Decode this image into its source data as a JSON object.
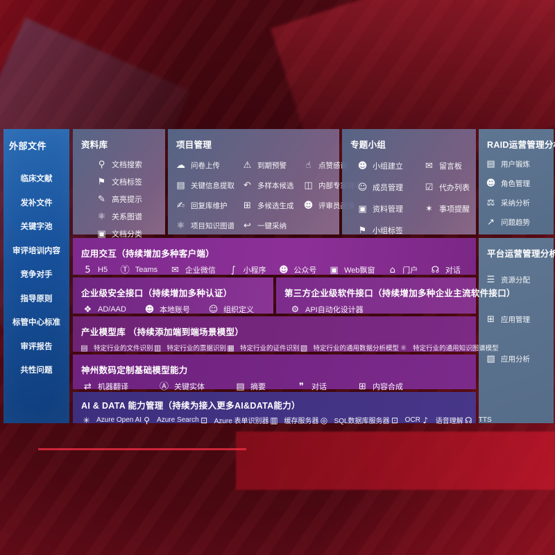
{
  "colors": {
    "sidebar_blue": "#1b5aa0",
    "panel_slate": "#66788f",
    "row_purple": "#7b2a8a",
    "row_indigo": "#3e2f80",
    "background_red": "#7c101f"
  },
  "sidebar": {
    "title": "外部文件",
    "items": [
      {
        "label": "临床文献"
      },
      {
        "label": "发补文件"
      },
      {
        "label": "关键字池"
      },
      {
        "label": "审评培训内容"
      },
      {
        "label": "竞争对手"
      },
      {
        "label": "指导原则"
      },
      {
        "label": "标管中心标准"
      },
      {
        "label": "审评报告"
      },
      {
        "label": "共性问题"
      }
    ]
  },
  "panels": {
    "ziliaoku": {
      "title": "资料库",
      "items": [
        {
          "label": "文档搜索",
          "icon": "⚲",
          "icon_name": "document-search-icon"
        },
        {
          "label": "文档标签",
          "icon": "⚑",
          "icon_name": "document-tag-icon"
        },
        {
          "label": "高亮提示",
          "icon": "✎",
          "icon_name": "highlight-pen-icon"
        },
        {
          "label": "关系图谱",
          "icon": "⚛",
          "icon_name": "relation-graph-icon"
        },
        {
          "label": "文档分类",
          "icon": "▣",
          "icon_name": "document-classify-icon"
        }
      ]
    },
    "xiangmu": {
      "title": "项目管理",
      "items": [
        {
          "label": "问卷上传",
          "icon": "☁",
          "icon_name": "cloud-upload-icon"
        },
        {
          "label": "到期预警",
          "icon": "⚠",
          "icon_name": "due-alarm-icon"
        },
        {
          "label": "点赞感谢",
          "icon": "☝",
          "icon_name": "thumbs-up-icon"
        },
        {
          "label": "关键信息提取",
          "icon": "▤",
          "icon_name": "key-info-extract-icon"
        },
        {
          "label": "多样本候选",
          "icon": "↶",
          "icon_name": "multi-sample-icon"
        },
        {
          "label": "内部专家排名",
          "icon": "◫",
          "icon_name": "expert-ranking-icon"
        },
        {
          "label": "回复库维护",
          "icon": "✍",
          "icon_name": "reply-maintain-icon"
        },
        {
          "label": "多候选生成",
          "icon": "⊞",
          "icon_name": "multi-candidate-icon"
        },
        {
          "label": "评审员画像",
          "icon": "☻",
          "icon_name": "reviewer-profile-icon"
        },
        {
          "label": "项目知识图谱",
          "icon": "⚛",
          "icon_name": "project-graph-icon"
        },
        {
          "label": "一键采纳",
          "icon": "↩",
          "icon_name": "one-click-adopt-icon"
        }
      ]
    },
    "zhuanti": {
      "title": "专题小组",
      "items": [
        {
          "label": "小组建立",
          "icon": "☻",
          "icon_name": "group-create-icon"
        },
        {
          "label": "留言板",
          "icon": "✉",
          "icon_name": "message-board-icon"
        },
        {
          "label": "成员管理",
          "icon": "☺",
          "icon_name": "member-manage-icon"
        },
        {
          "label": "代办列表",
          "icon": "☑",
          "icon_name": "todo-list-icon"
        },
        {
          "label": "资料管理",
          "icon": "▣",
          "icon_name": "data-manage-icon"
        },
        {
          "label": "事项提醒",
          "icon": "✶",
          "icon_name": "reminder-bell-icon"
        },
        {
          "label": "小组标签",
          "icon": "⚑",
          "icon_name": "group-tag-icon"
        }
      ]
    },
    "raid": {
      "title": "RAID运营管理分析",
      "items": [
        {
          "label": "用户锻炼",
          "icon": "▤",
          "icon_name": "user-card-icon"
        },
        {
          "label": "角色管理",
          "icon": "☻",
          "icon_name": "role-manage-icon"
        },
        {
          "label": "采纳分析",
          "icon": "⚖",
          "icon_name": "adoption-analysis-icon"
        },
        {
          "label": "问题趋势",
          "icon": "↗",
          "icon_name": "issue-trend-icon"
        }
      ]
    },
    "pingtai": {
      "title": "平台运营管理分析",
      "items": [
        {
          "label": "资源分配",
          "icon": "☰",
          "icon_name": "resource-allocation-icon"
        },
        {
          "label": "应用管理",
          "icon": "⊞",
          "icon_name": "app-manage-icon"
        },
        {
          "label": "应用分析",
          "icon": "▧",
          "icon_name": "app-analytics-icon"
        }
      ]
    }
  },
  "rows": {
    "interaction": {
      "title": "应用交互（持续增加多种客户端）",
      "items": [
        {
          "label": "H5",
          "icon": "5",
          "icon_name": "html5-icon"
        },
        {
          "label": "Teams",
          "icon": "Ⓣ",
          "icon_name": "teams-icon"
        },
        {
          "label": "企业微信",
          "icon": "✉",
          "icon_name": "wechat-work-icon"
        },
        {
          "label": "小程序",
          "icon": "∫",
          "icon_name": "miniprogram-icon"
        },
        {
          "label": "公众号",
          "icon": "☻",
          "icon_name": "official-account-icon"
        },
        {
          "label": "Web飘窗",
          "icon": "▣",
          "icon_name": "web-popup-icon"
        },
        {
          "label": "门户",
          "icon": "⌂",
          "icon_name": "portal-icon"
        },
        {
          "label": "对话",
          "icon": "☊",
          "icon_name": "dialog-icon"
        }
      ]
    },
    "security": {
      "title": "企业级安全接口（持续增加多种认证）",
      "items": [
        {
          "label": "AD/AAD",
          "icon": "❖",
          "icon_name": "ad-aad-icon"
        },
        {
          "label": "本地账号",
          "icon": "☻",
          "icon_name": "local-account-icon"
        },
        {
          "label": "组织定义",
          "icon": "☺",
          "icon_name": "org-definition-icon"
        }
      ]
    },
    "thirdparty": {
      "title": "第三方企业级软件接口（持续增加多种企业主流软件接口）",
      "items": [
        {
          "label": "API自动化设计器",
          "icon": "⚙",
          "icon_name": "api-designer-icon"
        }
      ]
    },
    "industry": {
      "title": "产业模型库 （持续添加端到端场景模型）",
      "items": [
        {
          "label": "特定行业的文件识别",
          "icon": "▤",
          "icon_name": "file-recognition-icon"
        },
        {
          "label": "特定行业的票据识别",
          "icon": "▥",
          "icon_name": "invoice-recognition-icon"
        },
        {
          "label": "特定行业的证件识别",
          "icon": "▦",
          "icon_name": "id-recognition-icon"
        },
        {
          "label": "特定行业的通用数据分析模型",
          "icon": "▧",
          "icon_name": "data-analysis-model-icon"
        },
        {
          "label": "特定行业的通用知识图谱模型",
          "icon": "⚛",
          "icon_name": "knowledge-graph-model-icon"
        }
      ]
    },
    "foundation": {
      "title": "神州数码定制基础模型能力",
      "items": [
        {
          "label": "机器翻译",
          "icon": "⇄",
          "icon_name": "machine-translation-icon"
        },
        {
          "label": "关键实体",
          "icon": "Ⓐ",
          "icon_name": "key-entity-icon"
        },
        {
          "label": "摘要",
          "icon": "▤",
          "icon_name": "summary-icon"
        },
        {
          "label": "对话",
          "icon": "❞",
          "icon_name": "chat-icon"
        },
        {
          "label": "内容合成",
          "icon": "⊞",
          "icon_name": "content-synthesis-icon"
        }
      ]
    },
    "aidata": {
      "title": "AI & DATA 能力管理（持续为接入更多AI&DATA能力）",
      "items": [
        {
          "label": "Azure Open AI",
          "icon": "✳",
          "icon_name": "azure-openai-icon"
        },
        {
          "label": "Azure Search",
          "icon": "⚲",
          "icon_name": "azure-search-icon"
        },
        {
          "label": "Azure 表单识别器",
          "icon": "⊡",
          "icon_name": "form-recognizer-icon"
        },
        {
          "label": "缓存服务器",
          "icon": "▥",
          "icon_name": "cache-server-icon"
        },
        {
          "label": "SQL数据库服务器",
          "icon": "◎",
          "icon_name": "sql-server-icon"
        },
        {
          "label": "OCR",
          "icon": "⊡",
          "icon_name": "ocr-icon"
        },
        {
          "label": "语音理解",
          "icon": "♪",
          "icon_name": "speech-understanding-icon"
        },
        {
          "label": "TTS",
          "icon": "☊",
          "icon_name": "tts-icon"
        }
      ]
    }
  }
}
